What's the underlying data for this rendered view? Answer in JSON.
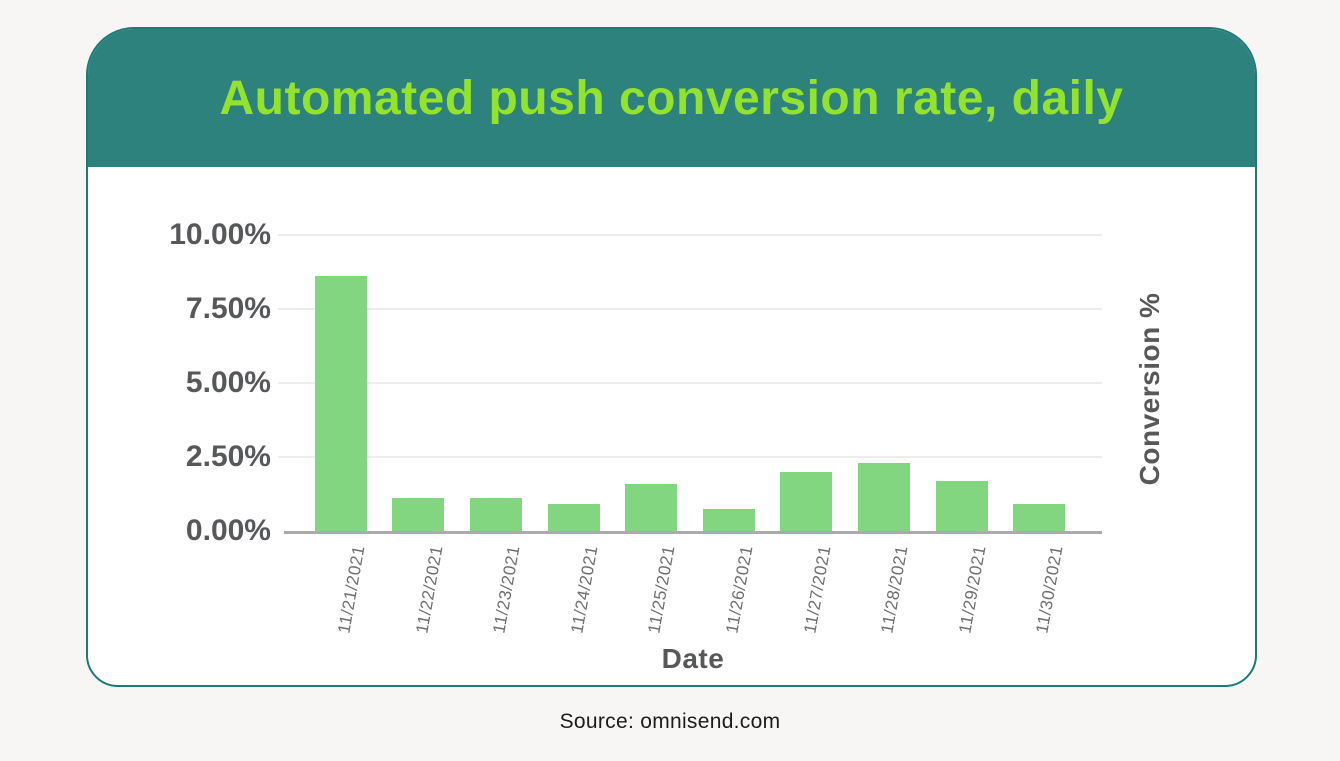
{
  "header": {
    "title": "Automated push conversion rate, daily"
  },
  "footer": {
    "source": "Source: omnisend.com"
  },
  "colors": {
    "page_bg": "#f7f6f4",
    "header_bg": "#2e827e",
    "title_text": "#93e32d",
    "card_border": "#1d7a74",
    "bar_fill": "#81d67f",
    "axis_text": "#57585a",
    "date_text": "#6e6e6e",
    "gridline": "#ededed",
    "baseline": "#ababab"
  },
  "chart_data": {
    "type": "bar",
    "title": "Automated push conversion rate, daily",
    "categories": [
      "11/21/2021",
      "11/22/2021",
      "11/23/2021",
      "11/24/2021",
      "11/25/2021",
      "11/26/2021",
      "11/27/2021",
      "11/28/2021",
      "11/29/2021",
      "11/30/2021"
    ],
    "values": [
      8.6,
      1.1,
      1.1,
      0.9,
      1.6,
      0.75,
      2.0,
      2.3,
      1.7,
      0.9
    ],
    "xlabel": "Date",
    "ylabel": "Conversion %",
    "ylim": [
      0,
      10
    ],
    "yticks": [
      0,
      2.5,
      5,
      7.5,
      10
    ],
    "ytick_labels": [
      "0.00%",
      "2.50%",
      "5.00%",
      "7.50%",
      "10.00%"
    ],
    "grid": true,
    "legend": false
  }
}
